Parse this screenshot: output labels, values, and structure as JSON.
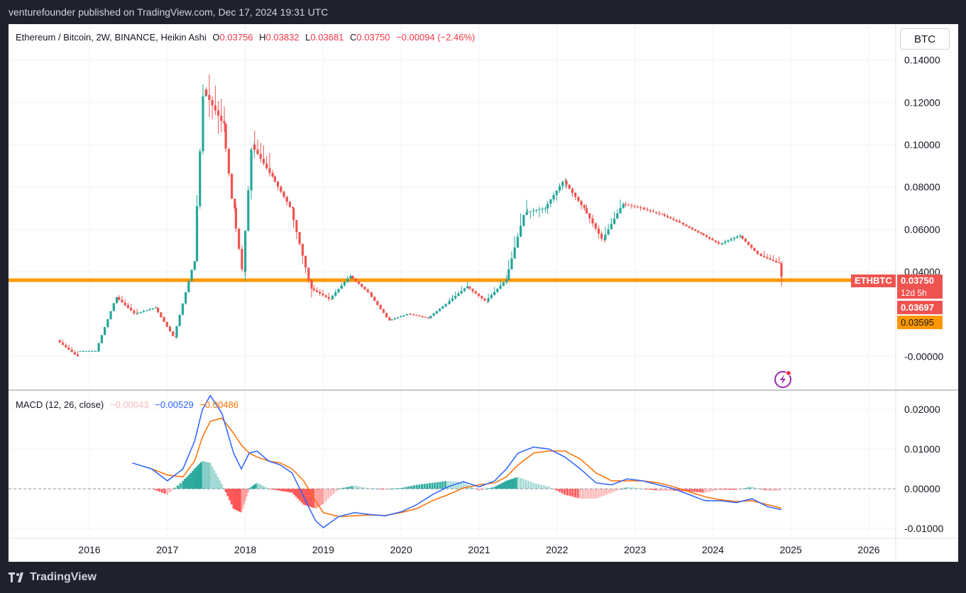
{
  "header": {
    "publisher_line": "venturefounder published on TradingView.com, Dec 17, 2024 19:31 UTC"
  },
  "legend": {
    "title": "Ethereum / Bitcoin, 2W, BINANCE, Heikin Ashi",
    "o_label": "O",
    "o_value": "0.03756",
    "h_label": "H",
    "h_value": "0.03832",
    "l_label": "L",
    "l_value": "0.03681",
    "c_label": "C",
    "c_value": "0.03750",
    "change": "−0.00094 (−2.46%)"
  },
  "currency_button": "BTC",
  "price_badges": {
    "symbol": "ETHBTC",
    "last_price": "0.03750",
    "countdown": "12d 5h",
    "second_price": "0.03697",
    "line_price": "0.03595"
  },
  "macd_legend": {
    "title": "MACD (12, 26, close)",
    "hist": "−0.00043",
    "macd": "−0.00529",
    "signal": "−0.00486"
  },
  "footer": {
    "brand": "TradingView"
  },
  "colors": {
    "up": "#26a69a",
    "down": "#ef5350",
    "macd": "#2962ff",
    "signal": "#ff6d00",
    "hline": "#ff9800",
    "hist_up": "#26a69a",
    "hist_down": "#ff5252"
  },
  "chart_data": [
    {
      "type": "candlestick",
      "title": "Ethereum / Bitcoin, 2W, BINANCE, Heikin Ashi",
      "y_ticks": [
        "0.14000",
        "0.12000",
        "0.10000",
        "0.08000",
        "0.06000",
        "0.04000",
        "-0.00000"
      ],
      "x_ticks": [
        "2016",
        "2017",
        "2018",
        "2019",
        "2020",
        "2021",
        "2022",
        "2023",
        "2024",
        "2025",
        "2026"
      ],
      "ylim": [
        -0.016,
        0.157
      ],
      "horizontal_line": 0.03595,
      "grid": true,
      "series": [
        {
          "name": "ETHBTC",
          "ohlc": [
            [
              2015.62,
              0.0075,
              0.0125,
              0.0,
              0.0
            ],
            [
              2015.88,
              0.0025,
              0.0035,
              0.0015,
              0.0025
            ],
            [
              2016.12,
              0.0025,
              0.028,
              0.0015,
              0.028
            ],
            [
              2016.38,
              0.028,
              0.034,
              0.018,
              0.02
            ],
            [
              2016.62,
              0.02,
              0.025,
              0.019,
              0.023
            ],
            [
              2016.88,
              0.023,
              0.024,
              0.008,
              0.009
            ],
            [
              2017.12,
              0.009,
              0.045,
              0.007,
              0.045
            ],
            [
              2017.38,
              0.045,
              0.142,
              0.04,
              0.126
            ],
            [
              2017.5,
              0.126,
              0.154,
              0.085,
              0.11
            ],
            [
              2017.75,
              0.11,
              0.11,
              0.065,
              0.07
            ],
            [
              2017.88,
              0.07,
              0.075,
              0.035,
              0.04
            ],
            [
              2018.0,
              0.04,
              0.106,
              0.026,
              0.1
            ],
            [
              2018.12,
              0.1,
              0.122,
              0.08,
              0.085
            ],
            [
              2018.38,
              0.085,
              0.087,
              0.065,
              0.07
            ],
            [
              2018.62,
              0.07,
              0.07,
              0.02,
              0.032
            ],
            [
              2018.88,
              0.032,
              0.038,
              0.024,
              0.027
            ],
            [
              2019.12,
              0.027,
              0.042,
              0.025,
              0.038
            ],
            [
              2019.38,
              0.038,
              0.039,
              0.028,
              0.03
            ],
            [
              2019.62,
              0.03,
              0.031,
              0.016,
              0.017
            ],
            [
              2019.88,
              0.017,
              0.021,
              0.016,
              0.02
            ],
            [
              2020.12,
              0.02,
              0.022,
              0.017,
              0.018
            ],
            [
              2020.38,
              0.018,
              0.026,
              0.017,
              0.025
            ],
            [
              2020.62,
              0.025,
              0.04,
              0.023,
              0.033
            ],
            [
              2020.88,
              0.033,
              0.034,
              0.023,
              0.026
            ],
            [
              2021.12,
              0.026,
              0.043,
              0.024,
              0.036
            ],
            [
              2021.38,
              0.036,
              0.085,
              0.035,
              0.068
            ],
            [
              2021.62,
              0.068,
              0.074,
              0.058,
              0.07
            ],
            [
              2021.88,
              0.07,
              0.087,
              0.062,
              0.083
            ],
            [
              2022.12,
              0.083,
              0.085,
              0.064,
              0.07
            ],
            [
              2022.38,
              0.07,
              0.075,
              0.048,
              0.055
            ],
            [
              2022.62,
              0.055,
              0.084,
              0.054,
              0.072
            ],
            [
              2022.88,
              0.072,
              0.075,
              0.066,
              0.07
            ],
            [
              2023.12,
              0.07,
              0.073,
              0.064,
              0.067
            ],
            [
              2023.38,
              0.067,
              0.07,
              0.061,
              0.063
            ],
            [
              2023.62,
              0.063,
              0.064,
              0.056,
              0.058
            ],
            [
              2023.88,
              0.058,
              0.06,
              0.051,
              0.053
            ],
            [
              2024.12,
              0.053,
              0.06,
              0.05,
              0.057
            ],
            [
              2024.38,
              0.057,
              0.058,
              0.046,
              0.048
            ],
            [
              2024.62,
              0.048,
              0.056,
              0.043,
              0.044
            ],
            [
              2024.88,
              0.044,
              0.045,
              0.033,
              0.0375
            ]
          ]
        }
      ]
    },
    {
      "type": "macd",
      "title": "MACD (12, 26, close)",
      "y_ticks": [
        "0.02000",
        "0.01000",
        "0.00000",
        "-0.01000"
      ],
      "ylim": [
        -0.0125,
        0.0245
      ],
      "x": [
        2016.55,
        2016.8,
        2017.0,
        2017.2,
        2017.35,
        2017.45,
        2017.55,
        2017.7,
        2017.85,
        2017.95,
        2018.05,
        2018.15,
        2018.3,
        2018.45,
        2018.6,
        2018.75,
        2018.9,
        2019.0,
        2019.2,
        2019.4,
        2019.6,
        2019.8,
        2020.0,
        2020.2,
        2020.4,
        2020.6,
        2020.8,
        2021.0,
        2021.2,
        2021.35,
        2021.5,
        2021.7,
        2021.9,
        2022.1,
        2022.3,
        2022.5,
        2022.7,
        2022.9,
        2023.1,
        2023.3,
        2023.5,
        2023.7,
        2023.9,
        2024.1,
        2024.3,
        2024.5,
        2024.7,
        2024.88
      ],
      "series": [
        {
          "name": "MACD",
          "values": [
            0.0065,
            0.005,
            0.002,
            0.005,
            0.012,
            0.02,
            0.0235,
            0.019,
            0.009,
            0.005,
            0.009,
            0.0095,
            0.007,
            0.006,
            0.004,
            -0.002,
            -0.008,
            -0.0098,
            -0.007,
            -0.006,
            -0.0065,
            -0.0068,
            -0.0058,
            -0.004,
            -0.0015,
            0.0005,
            0.0018,
            0.0005,
            0.002,
            0.005,
            0.009,
            0.0105,
            0.01,
            0.008,
            0.005,
            0.0015,
            0.001,
            0.0025,
            0.002,
            0.001,
            0.0,
            -0.0015,
            -0.003,
            -0.003,
            -0.0035,
            -0.0025,
            -0.0045,
            -0.0053
          ]
        },
        {
          "name": "Signal",
          "values": [
            null,
            0.005,
            0.0035,
            0.003,
            0.007,
            0.013,
            0.017,
            0.0178,
            0.014,
            0.011,
            0.009,
            0.008,
            0.007,
            0.0065,
            0.005,
            0.002,
            -0.003,
            -0.006,
            -0.007,
            -0.0068,
            -0.0066,
            -0.0067,
            -0.006,
            -0.005,
            -0.003,
            -0.0015,
            0.0002,
            0.001,
            0.0015,
            0.003,
            0.006,
            0.009,
            0.0095,
            0.0095,
            0.0075,
            0.004,
            0.002,
            0.002,
            0.002,
            0.0015,
            0.0005,
            -0.0008,
            -0.002,
            -0.0028,
            -0.0032,
            -0.003,
            -0.004,
            -0.0049
          ]
        },
        {
          "name": "Histogram",
          "values": [
            null,
            0.0,
            -0.0015,
            0.002,
            0.005,
            0.007,
            0.0065,
            0.0012,
            -0.005,
            -0.006,
            0.0,
            0.0015,
            0.0,
            -0.0005,
            -0.001,
            -0.004,
            -0.005,
            -0.0038,
            0.0,
            0.0008,
            0.0001,
            -0.0001,
            0.0002,
            0.001,
            0.0015,
            0.002,
            0.0016,
            -0.0005,
            0.0005,
            0.002,
            0.003,
            0.0015,
            0.0005,
            -0.0015,
            -0.0025,
            -0.0025,
            -0.001,
            0.0005,
            0.0,
            -0.0005,
            -0.0005,
            -0.0007,
            -0.001,
            -0.0002,
            -0.0003,
            0.0005,
            -0.0005,
            -0.00043
          ]
        }
      ]
    }
  ]
}
